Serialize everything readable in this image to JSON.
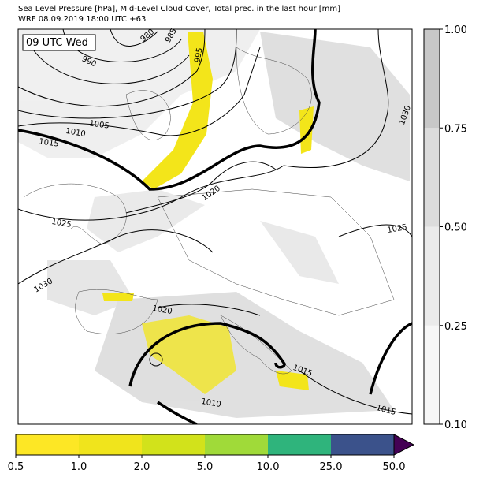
{
  "header": {
    "title": "Sea Level Pressure [hPa], Mid-Level Cloud Cover, Total prec. in the last hour [mm]",
    "subtitle": "WRF 08.09.2019 18:00 UTC +63"
  },
  "map": {
    "time_label": "09 UTC Wed",
    "contour_labels": [
      "980",
      "985",
      "990",
      "995",
      "1005",
      "1010",
      "1015",
      "1020",
      "1025",
      "1030",
      "1030",
      "1025",
      "1020",
      "1015",
      "1010",
      "1015"
    ]
  },
  "cloud_colorbar": {
    "ticks": [
      {
        "value": 0.1,
        "label": "0.10"
      },
      {
        "value": 0.25,
        "label": "0.25"
      },
      {
        "value": 0.5,
        "label": "0.50"
      },
      {
        "value": 0.75,
        "label": "0.75"
      },
      {
        "value": 1.0,
        "label": "1.00"
      }
    ],
    "colors": [
      "#f7f7f7",
      "#ebebeb",
      "#dcdcdc",
      "#c8c8c8"
    ]
  },
  "precip_colorbar": {
    "ticks": [
      {
        "value": 0.5,
        "label": "0.5"
      },
      {
        "value": 1.0,
        "label": "1.0"
      },
      {
        "value": 2.0,
        "label": "2.0"
      },
      {
        "value": 5.0,
        "label": "5.0"
      },
      {
        "value": 10.0,
        "label": "10.0"
      },
      {
        "value": 25.0,
        "label": "25.0"
      },
      {
        "value": 50.0,
        "label": "50.0"
      }
    ],
    "colors": [
      "#fde725",
      "#f0e41c",
      "#d2e21b",
      "#a0da39",
      "#2fb47c",
      "#3b528b"
    ],
    "extend_color": "#440154"
  }
}
